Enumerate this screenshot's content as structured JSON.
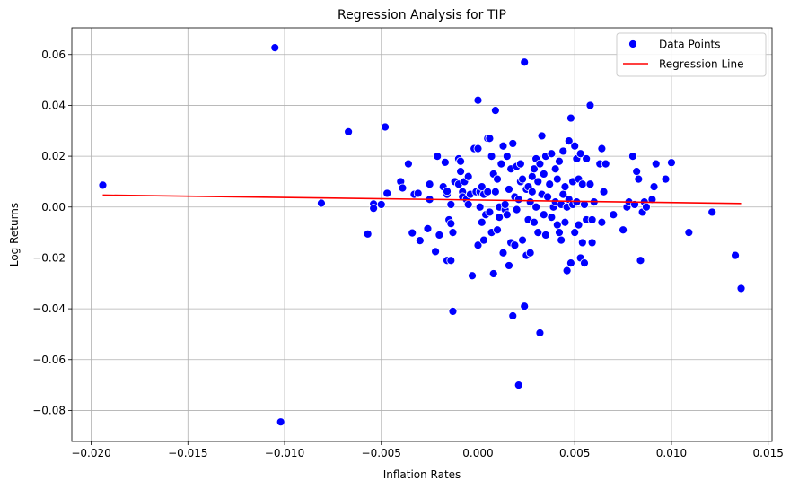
{
  "colors": {
    "points": "#0000ff",
    "point_edge": "#ffffff",
    "regression": "#ff0000"
  },
  "chart_data": {
    "type": "scatter",
    "title": "Regression Analysis for TIP",
    "xlabel": "Inflation Rates",
    "ylabel": "Log Returns",
    "xlim": [
      -0.021,
      0.0152
    ],
    "ylim": [
      -0.0922,
      0.0705
    ],
    "x_ticks": [
      -0.02,
      -0.015,
      -0.01,
      -0.005,
      0.0,
      0.005,
      0.01,
      0.015
    ],
    "x_tick_labels": [
      "−0.020",
      "−0.015",
      "−0.010",
      "−0.005",
      "0.000",
      "0.005",
      "0.010",
      "0.015"
    ],
    "y_ticks": [
      -0.08,
      -0.06,
      -0.04,
      -0.02,
      0.0,
      0.02,
      0.04,
      0.06
    ],
    "y_tick_labels": [
      "−0.08",
      "−0.06",
      "−0.04",
      "−0.02",
      "0.00",
      "0.02",
      "0.04",
      "0.06"
    ],
    "grid": true,
    "legend": {
      "placement": "top-right",
      "entries": [
        "Data Points",
        "Regression Line"
      ]
    },
    "series": [
      {
        "name": "Data Points",
        "kind": "scatter",
        "points": [
          [
            -0.0194,
            0.0086
          ],
          [
            -0.0105,
            0.0627
          ],
          [
            -0.0102,
            -0.0845
          ],
          [
            -0.0081,
            0.0015
          ],
          [
            -0.0067,
            0.0296
          ],
          [
            -0.0057,
            -0.0106
          ],
          [
            -0.0054,
            0.0012
          ],
          [
            -0.0054,
            -0.0005
          ],
          [
            -0.005,
            0.001
          ],
          [
            -0.0048,
            0.0315
          ],
          [
            -0.0047,
            0.0054
          ],
          [
            -0.004,
            0.01
          ],
          [
            -0.0039,
            0.0075
          ],
          [
            -0.0036,
            0.017
          ],
          [
            -0.0034,
            -0.0102
          ],
          [
            -0.0033,
            0.005
          ],
          [
            -0.0031,
            0.0054
          ],
          [
            -0.003,
            -0.0132
          ],
          [
            -0.0026,
            -0.0085
          ],
          [
            -0.0025,
            0.003
          ],
          [
            -0.0025,
            0.009
          ],
          [
            -0.0022,
            -0.0175
          ],
          [
            -0.0021,
            0.02
          ],
          [
            -0.002,
            -0.011
          ],
          [
            -0.0018,
            0.008
          ],
          [
            -0.0017,
            0.0176
          ],
          [
            -0.0016,
            -0.021
          ],
          [
            -0.0016,
            0.005
          ],
          [
            -0.0016,
            0.0062
          ],
          [
            -0.0015,
            -0.005
          ],
          [
            -0.0014,
            -0.021
          ],
          [
            -0.0014,
            0.001
          ],
          [
            -0.0014,
            -0.0065
          ],
          [
            -0.0013,
            -0.041
          ],
          [
            -0.0013,
            -0.01
          ],
          [
            -0.0012,
            0.01
          ],
          [
            -0.001,
            0.019
          ],
          [
            -0.001,
            0.009
          ],
          [
            -0.0009,
            0.018
          ],
          [
            -0.0009,
            0.014
          ],
          [
            -0.0008,
            0.006
          ],
          [
            -0.0008,
            0.004
          ],
          [
            -0.0007,
            0.01
          ],
          [
            -0.0006,
            0.003
          ],
          [
            -0.0005,
            0.001
          ],
          [
            -0.0005,
            0.012
          ],
          [
            -0.0004,
            0.005
          ],
          [
            -0.0003,
            -0.027
          ],
          [
            -0.0002,
            0.023
          ],
          [
            -0.0001,
            0.006
          ],
          [
            0.0,
            0.042
          ],
          [
            0.0,
            0.023
          ],
          [
            0.0,
            -0.015
          ],
          [
            0.0001,
            0.0
          ],
          [
            0.0001,
            0.006
          ],
          [
            0.0002,
            -0.006
          ],
          [
            0.0002,
            0.008
          ],
          [
            0.0003,
            0.005
          ],
          [
            0.0003,
            -0.013
          ],
          [
            0.0004,
            -0.003
          ],
          [
            0.0005,
            0.006
          ],
          [
            0.0005,
            0.027
          ],
          [
            0.0006,
            -0.002
          ],
          [
            0.0006,
            0.027
          ],
          [
            0.0007,
            0.02
          ],
          [
            0.0007,
            -0.01
          ],
          [
            0.0008,
            -0.0262
          ],
          [
            0.0008,
            0.013
          ],
          [
            0.0009,
            0.038
          ],
          [
            0.0009,
            0.006
          ],
          [
            0.001,
            -0.009
          ],
          [
            0.001,
            0.011
          ],
          [
            0.0011,
            0.0
          ],
          [
            0.0011,
            -0.004
          ],
          [
            0.0012,
            0.017
          ],
          [
            0.0013,
            -0.018
          ],
          [
            0.0013,
            0.024
          ],
          [
            0.0014,
            -0.001
          ],
          [
            0.0014,
            0.001
          ],
          [
            0.0015,
            0.02
          ],
          [
            0.0015,
            -0.003
          ],
          [
            0.0016,
            -0.023
          ],
          [
            0.0016,
            0.007
          ],
          [
            0.0017,
            -0.014
          ],
          [
            0.0017,
            0.015
          ],
          [
            0.0018,
            0.025
          ],
          [
            0.0018,
            -0.0428
          ],
          [
            0.0019,
            -0.015
          ],
          [
            0.0019,
            0.004
          ],
          [
            0.002,
            0.016
          ],
          [
            0.002,
            -0.001
          ],
          [
            0.0021,
            0.003
          ],
          [
            0.0021,
            -0.07
          ],
          [
            0.0022,
            0.017
          ],
          [
            0.0022,
            0.01
          ],
          [
            0.0023,
            -0.013
          ],
          [
            0.0023,
            0.011
          ],
          [
            0.0024,
            -0.039
          ],
          [
            0.0024,
            0.057
          ],
          [
            0.0025,
            -0.019
          ],
          [
            0.0025,
            0.007
          ],
          [
            0.0026,
            -0.005
          ],
          [
            0.0026,
            0.008
          ],
          [
            0.0027,
            -0.018
          ],
          [
            0.0027,
            0.002
          ],
          [
            0.0028,
            0.012
          ],
          [
            0.0028,
            0.006
          ],
          [
            0.0029,
            0.015
          ],
          [
            0.0029,
            -0.006
          ],
          [
            0.003,
            0.019
          ],
          [
            0.003,
            0.0
          ],
          [
            0.0031,
            0.01
          ],
          [
            0.0031,
            -0.01
          ],
          [
            0.0032,
            0.017
          ],
          [
            0.0032,
            -0.0495
          ],
          [
            0.0033,
            0.028
          ],
          [
            0.0033,
            0.005
          ],
          [
            0.0034,
            -0.003
          ],
          [
            0.0034,
            0.013
          ],
          [
            0.0035,
            0.02
          ],
          [
            0.0035,
            -0.011
          ],
          [
            0.0036,
            0.004
          ],
          [
            0.0037,
            0.009
          ],
          [
            0.0038,
            0.021
          ],
          [
            0.0038,
            -0.004
          ],
          [
            0.0039,
            0.0
          ],
          [
            0.004,
            0.015
          ],
          [
            0.004,
            0.002
          ],
          [
            0.0041,
            -0.007
          ],
          [
            0.0041,
            0.011
          ],
          [
            0.0042,
            -0.01
          ],
          [
            0.0042,
            0.018
          ],
          [
            0.0043,
            0.001
          ],
          [
            0.0043,
            -0.013
          ],
          [
            0.0044,
            0.022
          ],
          [
            0.0044,
            0.005
          ],
          [
            0.0045,
            -0.006
          ],
          [
            0.0045,
            0.008
          ],
          [
            0.0046,
            -0.025
          ],
          [
            0.0046,
            0.0
          ],
          [
            0.0047,
            0.026
          ],
          [
            0.0047,
            0.003
          ],
          [
            0.0048,
            0.035
          ],
          [
            0.0048,
            -0.022
          ],
          [
            0.0049,
            0.01
          ],
          [
            0.0049,
            0.001
          ],
          [
            0.005,
            0.024
          ],
          [
            0.005,
            -0.01
          ],
          [
            0.0051,
            0.019
          ],
          [
            0.0051,
            0.002
          ],
          [
            0.0052,
            -0.007
          ],
          [
            0.0052,
            0.011
          ],
          [
            0.0053,
            0.021
          ],
          [
            0.0053,
            -0.02
          ],
          [
            0.0054,
            0.009
          ],
          [
            0.0054,
            -0.014
          ],
          [
            0.0055,
            0.001
          ],
          [
            0.0055,
            -0.022
          ],
          [
            0.0056,
            0.019
          ],
          [
            0.0056,
            -0.005
          ],
          [
            0.0058,
            0.04
          ],
          [
            0.0058,
            0.009
          ],
          [
            0.0059,
            -0.005
          ],
          [
            0.0059,
            -0.014
          ],
          [
            0.006,
            0.002
          ],
          [
            0.0063,
            0.017
          ],
          [
            0.0064,
            0.023
          ],
          [
            0.0064,
            -0.006
          ],
          [
            0.0065,
            0.006
          ],
          [
            0.0066,
            0.017
          ],
          [
            0.007,
            -0.003
          ],
          [
            0.0075,
            -0.009
          ],
          [
            0.0077,
            0.0
          ],
          [
            0.0078,
            0.002
          ],
          [
            0.008,
            0.02
          ],
          [
            0.0081,
            0.001
          ],
          [
            0.0082,
            0.014
          ],
          [
            0.0083,
            0.011
          ],
          [
            0.0084,
            -0.021
          ],
          [
            0.0085,
            -0.002
          ],
          [
            0.0086,
            0.002
          ],
          [
            0.0087,
            0.0
          ],
          [
            0.009,
            0.003
          ],
          [
            0.0091,
            0.008
          ],
          [
            0.0092,
            0.017
          ],
          [
            0.0097,
            0.011
          ],
          [
            0.01,
            0.0175
          ],
          [
            0.0109,
            -0.01
          ],
          [
            0.0121,
            -0.002
          ],
          [
            0.0133,
            -0.019
          ],
          [
            0.0136,
            -0.032
          ]
        ]
      },
      {
        "name": "Regression Line",
        "kind": "line",
        "x": [
          -0.0194,
          0.0136
        ],
        "y": [
          0.0047,
          0.0014
        ]
      }
    ]
  }
}
